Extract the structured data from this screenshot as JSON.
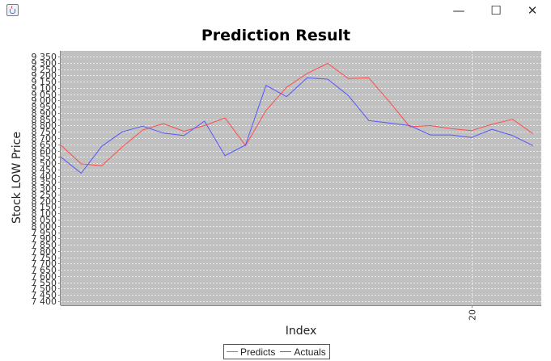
{
  "window": {
    "icon": "java-cup-icon",
    "minimize_glyph": "—",
    "maximize_glyph": "☐",
    "close_glyph": "✕"
  },
  "chart_data": {
    "type": "line",
    "title": "Prediction Result",
    "xlabel": "Index",
    "ylabel": "Stock LOW Price",
    "xlim": [
      0,
      23.4
    ],
    "ylim": [
      7400,
      9350
    ],
    "x_ticks": [
      20
    ],
    "y_ticks": [
      7400,
      7450,
      7500,
      7550,
      7600,
      7650,
      7700,
      7750,
      7800,
      7850,
      7900,
      7950,
      8000,
      8050,
      8100,
      8150,
      8200,
      8250,
      8300,
      8350,
      8400,
      8450,
      8500,
      8550,
      8600,
      8650,
      8700,
      8750,
      8800,
      8850,
      8900,
      8950,
      9000,
      9050,
      9100,
      9150,
      9200,
      9250,
      9300,
      9350
    ],
    "y_tick_labels": [
      "7 400",
      "7 450",
      "7 500",
      "7 550",
      "7 600",
      "7 650",
      "7 700",
      "7 750",
      "7 800",
      "7 850",
      "7 900",
      "7 950",
      "8 000",
      "8 050",
      "8 100",
      "8 150",
      "8 200",
      "8 250",
      "8 300",
      "8 350",
      "8 400",
      "8 450",
      "8 500",
      "8 550",
      "8 600",
      "8 650",
      "8 700",
      "8 750",
      "8 800",
      "8 850",
      "8 900",
      "8 950",
      "9 000",
      "9 050",
      "9 100",
      "9 150",
      "9 200",
      "9 250",
      "9 300",
      "9 350"
    ],
    "grid": true,
    "legend_position": "bottom-center",
    "x": [
      0,
      1,
      2,
      3,
      4,
      5,
      6,
      7,
      8,
      9,
      10,
      11,
      12,
      13,
      14,
      15,
      16,
      17,
      18,
      19,
      20,
      21,
      22,
      23
    ],
    "series": [
      {
        "name": "Predicts",
        "color": "#ff4d4d",
        "values": [
          8645,
          8495,
          8480,
          8630,
          8765,
          8815,
          8755,
          8800,
          8860,
          8640,
          8920,
          9105,
          9215,
          9295,
          9175,
          9180,
          8990,
          8790,
          8800,
          8775,
          8760,
          8810,
          8850,
          8735
        ]
      },
      {
        "name": "Actuals",
        "color": "#5555ff",
        "values": [
          8550,
          8420,
          8635,
          8750,
          8795,
          8740,
          8720,
          8835,
          8560,
          8645,
          9120,
          9030,
          9180,
          9170,
          9040,
          8840,
          8820,
          8800,
          8725,
          8725,
          8705,
          8770,
          8720,
          8640
        ]
      }
    ]
  }
}
